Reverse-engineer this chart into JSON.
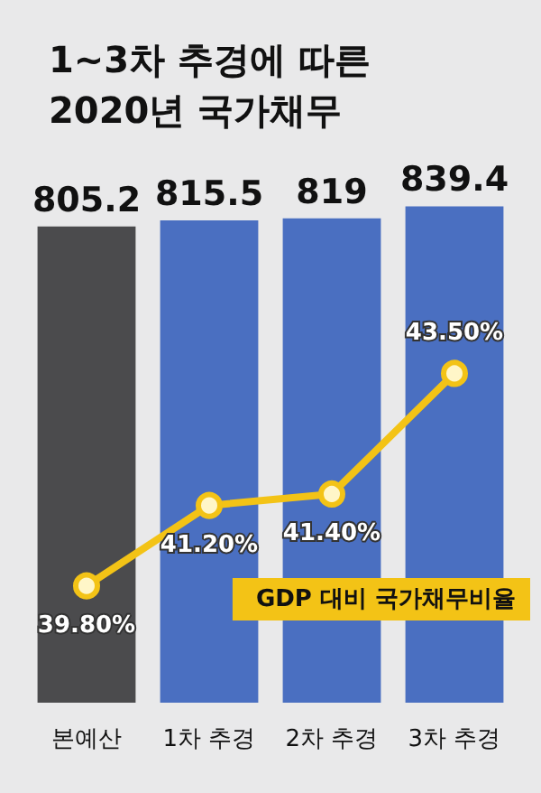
{
  "chart_data": {
    "type": "bar",
    "title": "1~3차 추경에 따른\n2020년 국가채무",
    "categories": [
      "본예산",
      "1차 추경",
      "2차 추경",
      "3차 추경"
    ],
    "series": [
      {
        "colors": [
          "#4b4b4d",
          "#4a6fc1",
          "#4a6fc1",
          "#4a6fc1"
        ],
        "values": [
          805.2,
          815.5,
          819,
          839.4
        ]
      },
      {
        "type": "line",
        "name": "GDP 대비 국가채무비율",
        "color": "#f3c316",
        "axis": "y2",
        "values": [
          39.8,
          41.2,
          41.4,
          43.5
        ],
        "value_labels": [
          "39.80%",
          "41.20%",
          "41.40%",
          "43.50%"
        ]
      }
    ],
    "data_labels": true,
    "tick_labels": "x",
    "marker": "circle",
    "legend": "bottom right"
  }
}
